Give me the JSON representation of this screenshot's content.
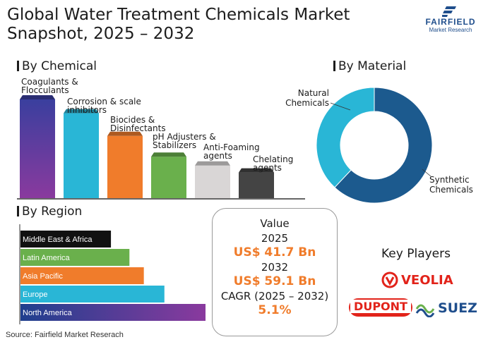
{
  "title": "Global Water Treatment Chemicals Market Snapshot, 2025 – 2032",
  "logo": {
    "name": "FAIRFIELD",
    "sub": "Market Research"
  },
  "source": "Source: Fairfield Market Reserach",
  "sections": {
    "chemical": "By Chemical",
    "material": "By Material",
    "region": "By Region"
  },
  "value_box": {
    "heading": "Value",
    "year1": "2025",
    "value1": "US$ 41.7 Bn",
    "year2": "2032",
    "value2": "US$ 59.1 Bn",
    "cagr_label": "CAGR (2025 – 2032)",
    "cagr_value": "5.1%"
  },
  "key_players": {
    "title": "Key Players",
    "companies": [
      "VEOLIA",
      "DUPONT",
      "SUEZ"
    ]
  },
  "chart_data": [
    {
      "type": "bar",
      "title": "By Chemical",
      "categories": [
        "Coagulants & Flocculants",
        "Corrosion & scale inhibitors",
        "Biocides & Disinfectants",
        "pH Adjusters & Stabilizers",
        "Anti-Foaming agents",
        "Chelating agents"
      ],
      "values": [
        100,
        86,
        63,
        42,
        33,
        26
      ],
      "colors": [
        "#5b3a8e",
        "#29b6d6",
        "#f07c2b",
        "#6ab04c",
        "#d9d6d6",
        "#444444"
      ]
    },
    {
      "type": "pie",
      "title": "By Material",
      "categories": [
        "Natural Chemicals",
        "Synthetic Chemicals"
      ],
      "values": [
        38,
        62
      ],
      "colors": [
        "#29b6d6",
        "#1c5a8e"
      ]
    },
    {
      "type": "bar",
      "title": "By Region",
      "orientation": "horizontal",
      "categories": [
        "Middle East & Africa",
        "Latin America",
        "Asia Pacific",
        "Europe",
        "North America"
      ],
      "values": [
        44,
        53,
        60,
        70,
        90
      ],
      "colors": [
        "#111111",
        "#6ab04c",
        "#f07c2b",
        "#29b6d6",
        "#5b3a8e"
      ]
    }
  ]
}
